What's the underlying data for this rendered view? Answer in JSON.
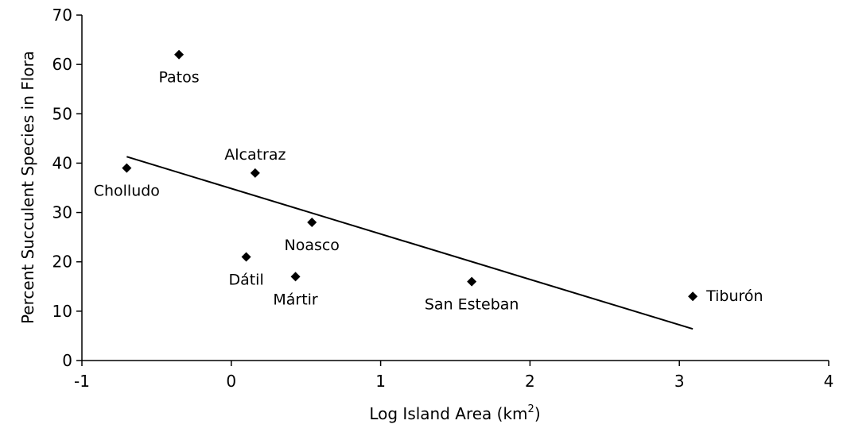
{
  "chart_data": {
    "type": "scatter",
    "title": "",
    "xlabel": "Log Island Area (km",
    "xlabel_sup": "2",
    "xlabel_close": ")",
    "ylabel": "Percent Succulent Species in Flora",
    "xlim": [
      -1,
      4
    ],
    "ylim": [
      0,
      70
    ],
    "xticks": [
      -1,
      0,
      1,
      2,
      3,
      4
    ],
    "yticks": [
      0,
      10,
      20,
      30,
      40,
      50,
      60,
      70
    ],
    "grid": false,
    "legend": "none",
    "colors": {
      "marker": "#000000",
      "line": "#000000",
      "axis": "#000000"
    },
    "points": [
      {
        "label": "Patos",
        "x": -0.35,
        "y": 62,
        "label_pos": "below"
      },
      {
        "label": "Cholludo",
        "x": -0.7,
        "y": 39,
        "label_pos": "below"
      },
      {
        "label": "Alcatraz",
        "x": 0.16,
        "y": 38,
        "label_pos": "above"
      },
      {
        "label": "Noasco",
        "x": 0.54,
        "y": 28,
        "label_pos": "below"
      },
      {
        "label": "Dátil",
        "x": 0.1,
        "y": 21,
        "label_pos": "below"
      },
      {
        "label": "Mártir",
        "x": 0.43,
        "y": 17,
        "label_pos": "below"
      },
      {
        "label": "San Esteban",
        "x": 1.61,
        "y": 16,
        "label_pos": "below"
      },
      {
        "label": "Tiburón",
        "x": 3.09,
        "y": 13,
        "label_pos": "right"
      }
    ],
    "trendline": {
      "x": [
        -0.7,
        3.09
      ],
      "y": [
        41.3,
        6.4
      ]
    }
  }
}
